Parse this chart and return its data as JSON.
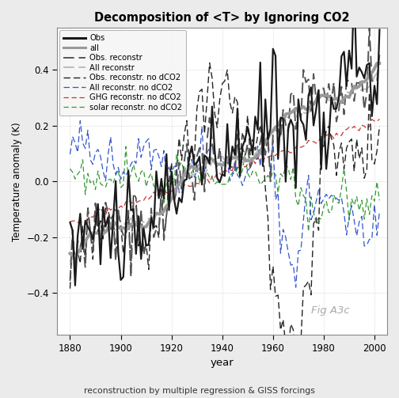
{
  "title": "Decomposition of <T> by Ignoring CO2",
  "xlabel": "year",
  "ylabel": "Temperature anomaly (K)",
  "subtitle": "reconstruction by multiple regression & GISS forcings",
  "fig_label": "Fig A3c",
  "xlim": [
    1875,
    2005
  ],
  "ylim": [
    -0.55,
    0.55
  ],
  "xticks": [
    1880,
    1900,
    1920,
    1940,
    1960,
    1980,
    2000
  ],
  "yticks": [
    -0.4,
    -0.2,
    0.0,
    0.2,
    0.4
  ],
  "legend_labels": [
    "Obs",
    "all",
    "Obs. reconstr",
    "All reconstr",
    "Obs. reconstr. no dCO2",
    "All reconstr. no dCO2",
    "GHG reconstr. no dCO2",
    "solar reconstr. no dCO2"
  ],
  "colors": {
    "obs": "#1a1a1a",
    "all": "#999999",
    "obs_reconstr": "#555555",
    "all_reconstr": "#bbbbbb",
    "obs_reconstr_noco2": "#222222",
    "all_reconstr_noco2": "#3355cc",
    "ghg_reconstr_noco2": "#cc3333",
    "solar_reconstr_noco2": "#339933"
  },
  "background": "#ebebeb",
  "plot_background": "#ffffff"
}
